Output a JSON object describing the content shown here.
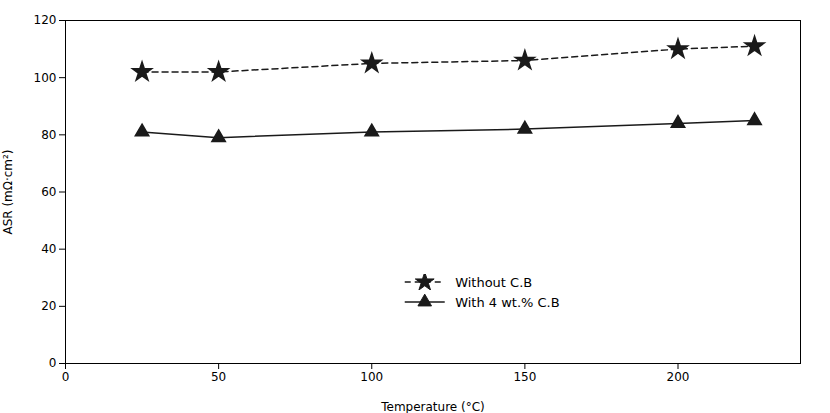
{
  "chart_data": {
    "type": "line",
    "xlabel": "Temperature (°C)",
    "ylabel": "ASR (mΩ·cm²)",
    "x": [
      25,
      50,
      100,
      150,
      200,
      225
    ],
    "series": [
      {
        "name": "Without C.B",
        "color": "#1a1a1a",
        "values": [
          102,
          102,
          105,
          106,
          110,
          111
        ],
        "marker": "star",
        "line_style": "dashed"
      },
      {
        "name": "With 4 wt.% C.B",
        "color": "#1a1a1a",
        "values": [
          81,
          79,
          81,
          82,
          84,
          85
        ],
        "marker": "triangle",
        "line_style": "solid"
      }
    ],
    "xlim": [
      0,
      240
    ],
    "ylim": [
      0,
      120
    ],
    "xticks": [
      0,
      50,
      100,
      150,
      200
    ],
    "yticks": [
      0,
      20,
      40,
      60,
      80,
      100,
      120
    ],
    "grid": false,
    "legend": "lower center"
  }
}
